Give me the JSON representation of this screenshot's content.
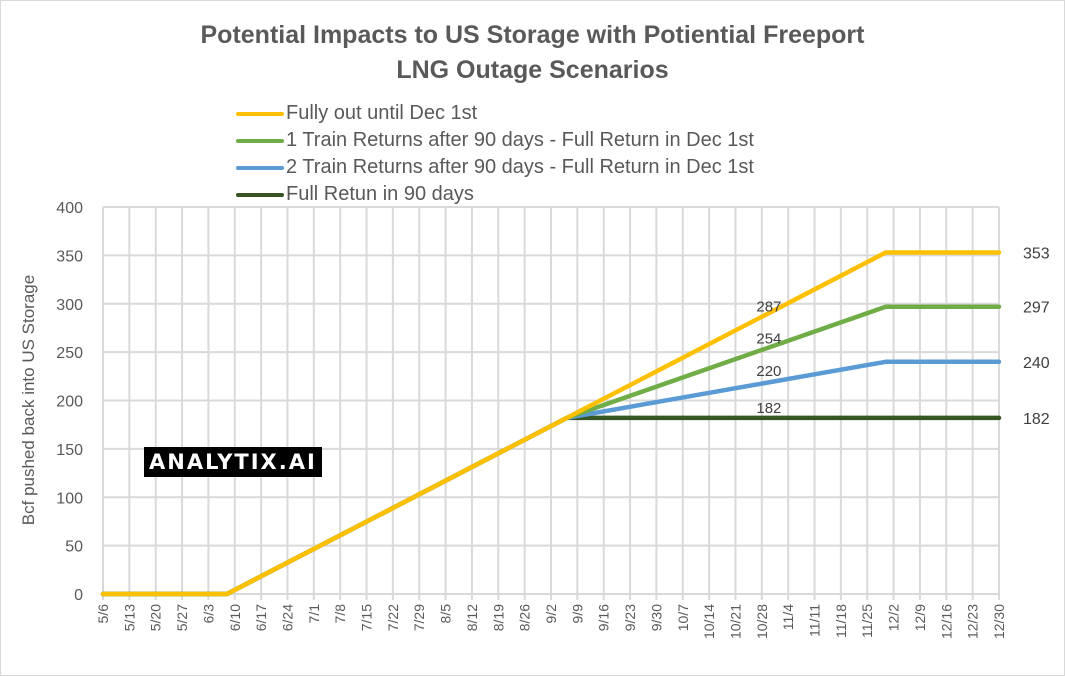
{
  "chart_data": {
    "type": "line",
    "title": "Potential Impacts to US Storage with Potiential Freeport LNG Outage Scenarios",
    "title_lines": [
      "Potential Impacts to US Storage with Potiential Freeport",
      "LNG Outage Scenarios"
    ],
    "xlabel": "",
    "ylabel": "Bcf pushed back into US Storage",
    "ylim": [
      0,
      400
    ],
    "yticks": [
      0,
      50,
      100,
      150,
      200,
      250,
      300,
      350,
      400
    ],
    "ytick_labels": [
      "0",
      "50",
      "100",
      "150",
      "200",
      "250",
      "300",
      "350",
      "400"
    ],
    "x_tick_labels": [
      "5/6",
      "5/13",
      "5/20",
      "5/27",
      "6/3",
      "6/10",
      "6/17",
      "6/24",
      "7/1",
      "7/8",
      "7/15",
      "7/22",
      "7/29",
      "8/5",
      "8/12",
      "8/19",
      "8/26",
      "9/2",
      "9/9",
      "9/16",
      "9/23",
      "9/30",
      "10/7",
      "10/14",
      "10/21",
      "10/28",
      "11/4",
      "11/11",
      "11/18",
      "11/25",
      "12/2",
      "12/9",
      "12/16",
      "12/23",
      "12/30"
    ],
    "x_unit": "weeks since 5/6",
    "grid": true,
    "legend_position": "top",
    "series": [
      {
        "name": "Fully out until Dec 1st",
        "color": "#FFC000",
        "points": [
          [
            0,
            0
          ],
          [
            4.7,
            0
          ],
          [
            17.6,
            182
          ],
          [
            29.7,
            353
          ],
          [
            34,
            353
          ]
        ]
      },
      {
        "name": "1 Train Returns after 90 days - Full Return in Dec 1st",
        "color": "#70AD47",
        "points": [
          [
            0,
            0
          ],
          [
            4.7,
            0
          ],
          [
            17.6,
            182
          ],
          [
            29.7,
            297
          ],
          [
            34,
            297
          ]
        ]
      },
      {
        "name": "2 Train Returns after 90 days - Full Return in Dec 1st",
        "color": "#5B9BD5",
        "points": [
          [
            0,
            0
          ],
          [
            4.7,
            0
          ],
          [
            17.6,
            182
          ],
          [
            29.7,
            240
          ],
          [
            34,
            240
          ]
        ]
      },
      {
        "name": "Full Retun in 90 days",
        "color": "#375623",
        "points": [
          [
            0,
            0
          ],
          [
            4.7,
            0
          ],
          [
            17.6,
            182
          ],
          [
            34,
            182
          ]
        ]
      }
    ],
    "annotations": [
      {
        "text": "287",
        "x": 25.4,
        "y": 287,
        "series": 0
      },
      {
        "text": "254",
        "x": 25.4,
        "y": 254,
        "series": 1
      },
      {
        "text": "220",
        "x": 25.4,
        "y": 220,
        "series": 2
      },
      {
        "text": "182",
        "x": 25.4,
        "y": 182,
        "series": 3
      },
      {
        "text": "353",
        "x": 34,
        "y": 353,
        "series": 0,
        "end": true
      },
      {
        "text": "297",
        "x": 34,
        "y": 297,
        "series": 1,
        "end": true
      },
      {
        "text": "240",
        "x": 34,
        "y": 240,
        "series": 2,
        "end": true
      },
      {
        "text": "182",
        "x": 34,
        "y": 182,
        "series": 3,
        "end": true
      }
    ]
  },
  "watermark": "ANALYTIX.AI"
}
